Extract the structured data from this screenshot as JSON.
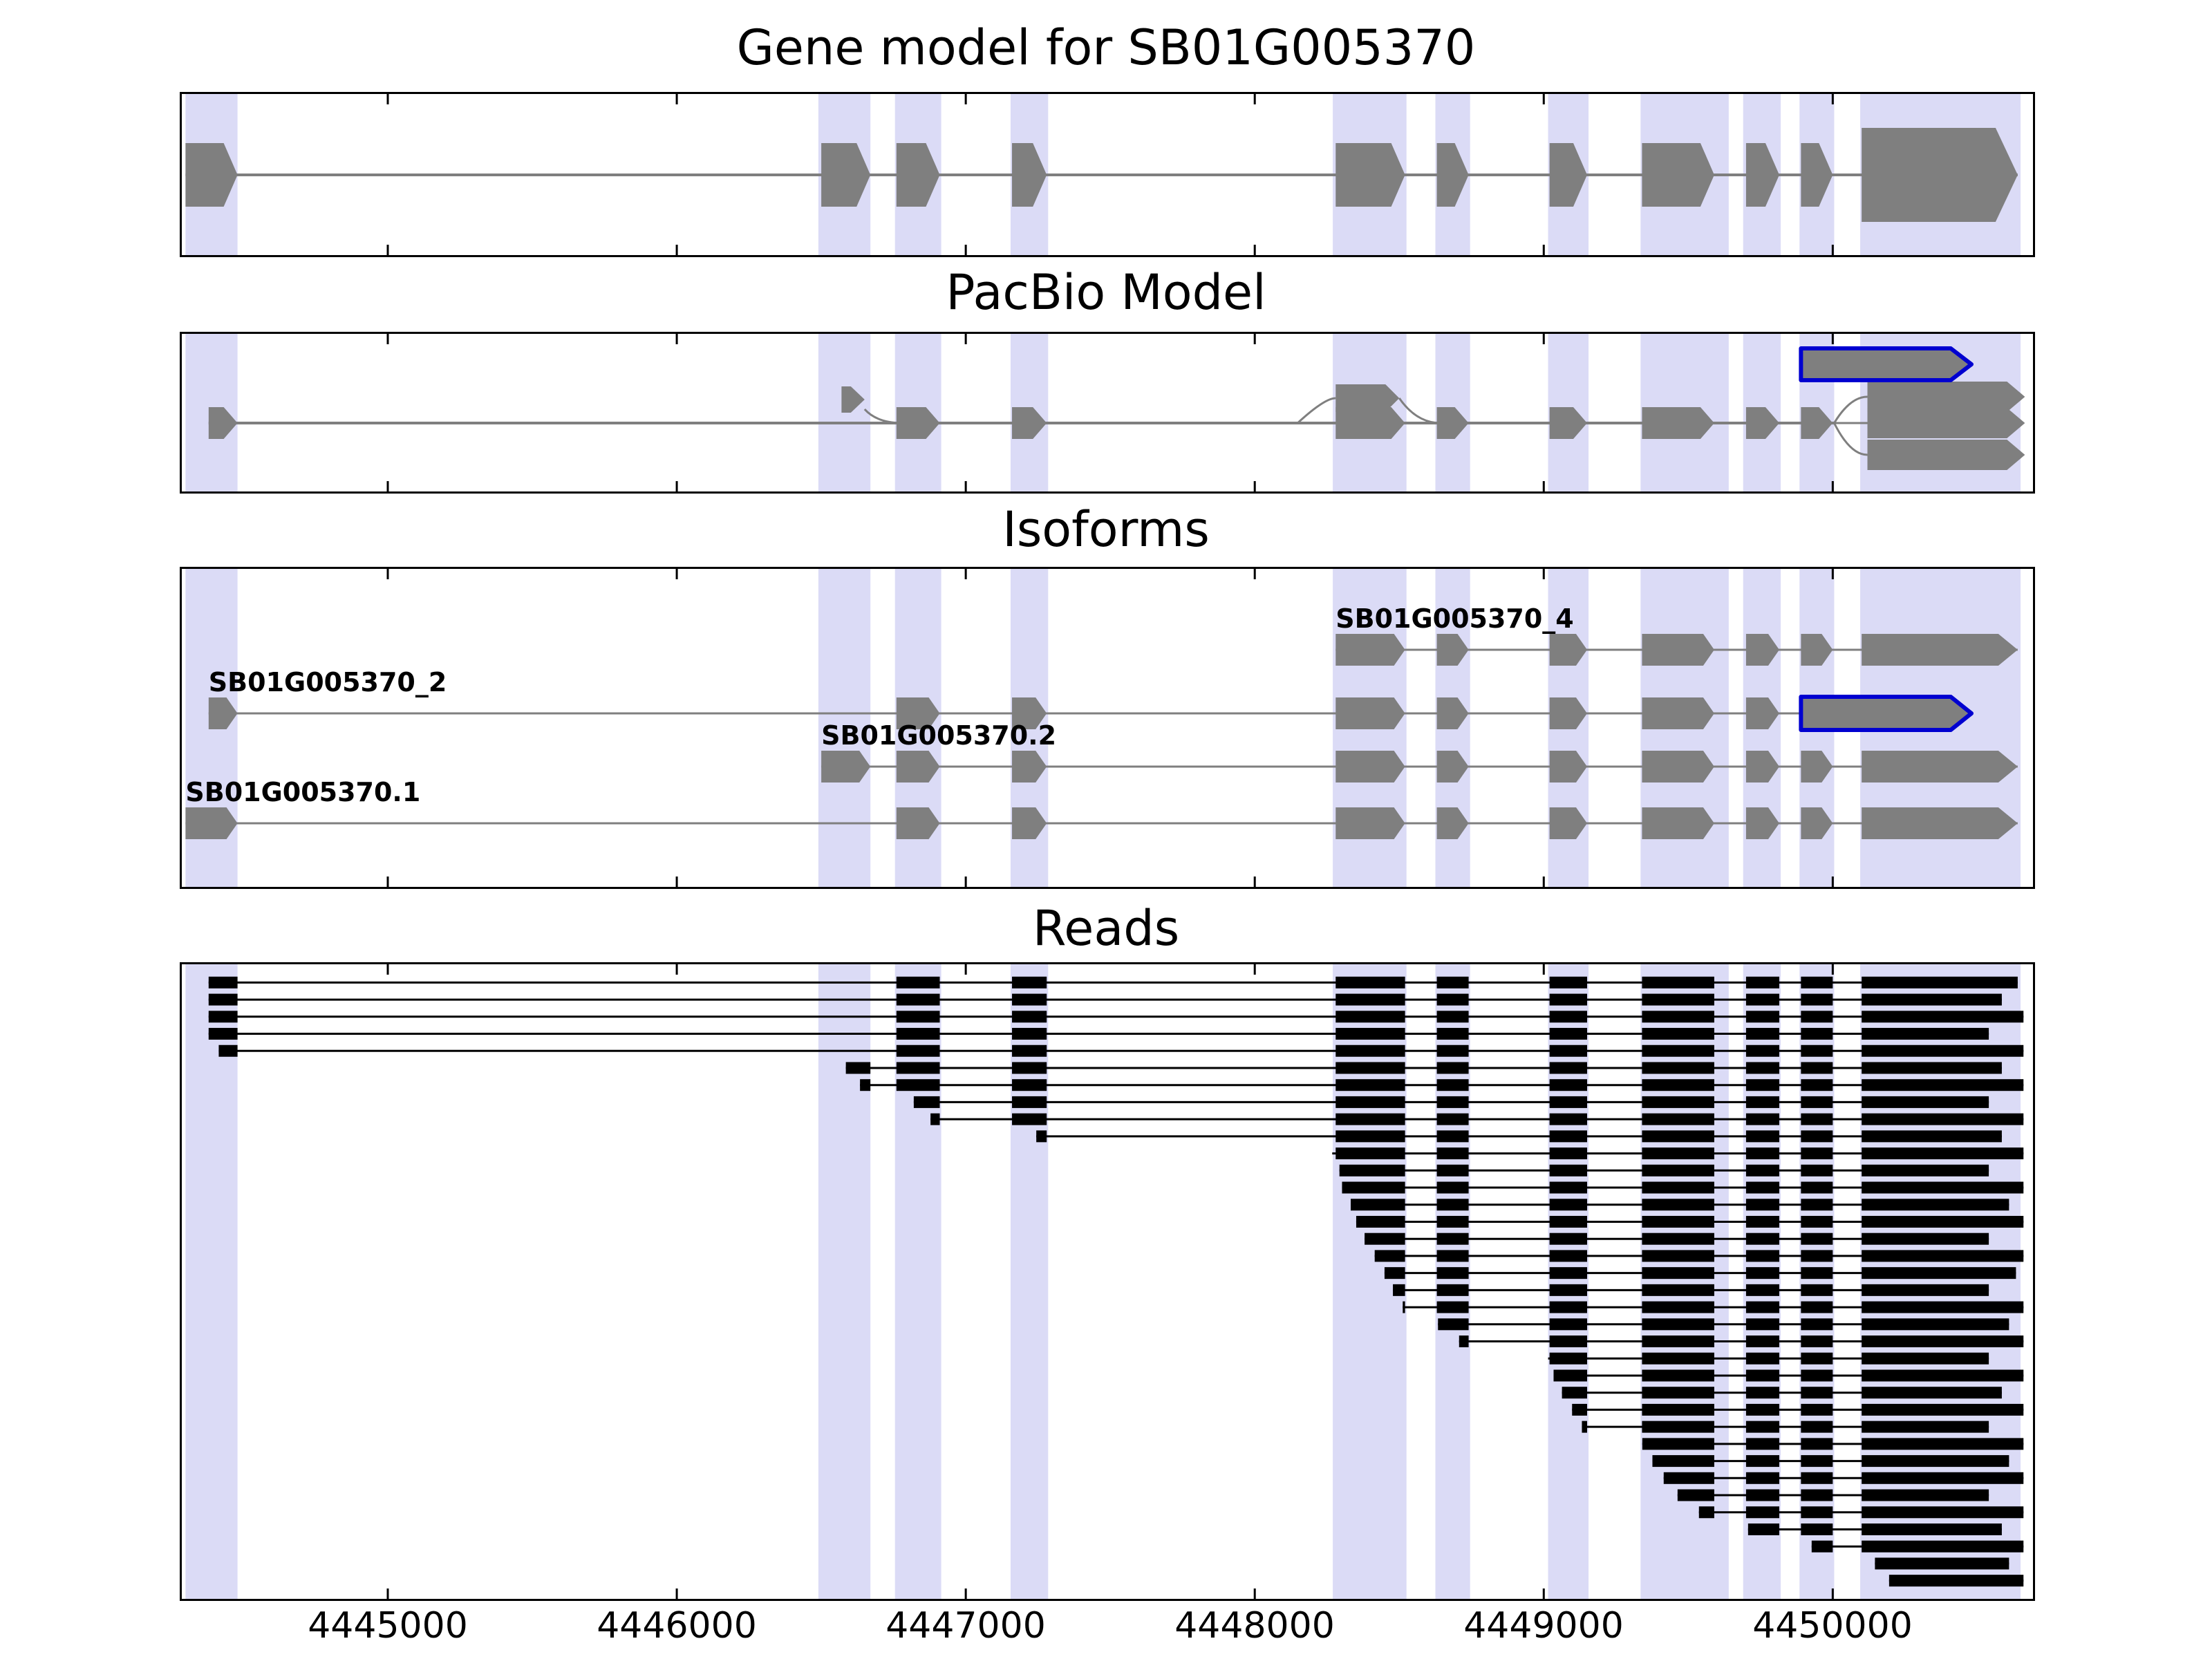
{
  "meta": {
    "colors": {
      "band": "#dbdbf6",
      "feature": "#7f7f7f",
      "read": "#000000",
      "highlight": "#0000d0",
      "axis": "#000000",
      "text": "#000000",
      "background": "#ffffff"
    }
  },
  "panels": [
    {
      "title": "Gene model for SB01G005370"
    },
    {
      "title": "PacBio Model"
    },
    {
      "title": "Isoforms"
    },
    {
      "title": "Reads"
    }
  ],
  "genome": {
    "ticks": [
      "4445000",
      "4446000",
      "4447000",
      "4448000",
      "4449000",
      "4450000"
    ]
  },
  "chart_data": {
    "type": "genomic-tracks",
    "title": "Gene model for SB01G005370",
    "x_range": [
      4444280,
      4450700
    ],
    "x_ticks": [
      4445000,
      4446000,
      4447000,
      4448000,
      4449000,
      4450000
    ],
    "exon_bands": [
      [
        4444300,
        4444480
      ],
      [
        4446490,
        4446670
      ],
      [
        4446755,
        4446915
      ],
      [
        4447155,
        4447285
      ],
      [
        4448270,
        4448525
      ],
      [
        4448625,
        4448745
      ],
      [
        4449015,
        4449155
      ],
      [
        4449335,
        4449640
      ],
      [
        4449690,
        4449820
      ],
      [
        4449885,
        4450005
      ],
      [
        4450095,
        4450650
      ]
    ],
    "gene_model": {
      "exons": [
        [
          4444300,
          4444480
        ],
        [
          4446500,
          4446670
        ],
        [
          4446760,
          4446910
        ],
        [
          4447160,
          4447280
        ],
        [
          4448280,
          4448520
        ],
        [
          4448630,
          4448740
        ],
        [
          4449020,
          4449150
        ],
        [
          4449340,
          4449590
        ],
        [
          4449700,
          4449815
        ],
        [
          4449890,
          4450000
        ],
        [
          4450100,
          4450640
        ]
      ]
    },
    "pacbio": {
      "main_exons": [
        [
          4444380,
          4444480
        ],
        [
          4446760,
          4446910
        ],
        [
          4447160,
          4447280
        ],
        [
          4448280,
          4448520
        ],
        [
          4448630,
          4448740
        ],
        [
          4449020,
          4449150
        ],
        [
          4449340,
          4449590
        ],
        [
          4449700,
          4449815
        ],
        [
          4449890,
          4450000
        ]
      ],
      "alt_start_exon": [
        4446570,
        4446650
      ],
      "alt_exon5": [
        4448280,
        4448500
      ],
      "terminal_exons": [
        [
          4450120,
          4450665
        ],
        [
          4450120,
          4450665
        ],
        [
          4450120,
          4450665
        ]
      ],
      "highlight_exon": [
        4449890,
        4450480
      ]
    },
    "isoforms": [
      {
        "name": "SB01G005370_4",
        "exons": [
          [
            4448280,
            4448520
          ],
          [
            4448630,
            4448740
          ],
          [
            4449020,
            4449150
          ],
          [
            4449340,
            4449590
          ],
          [
            4449700,
            4449815
          ],
          [
            4449890,
            4450000
          ],
          [
            4450100,
            4450640
          ]
        ],
        "highlight": null
      },
      {
        "name": "SB01G005370_2",
        "exons": [
          [
            4444380,
            4444480
          ],
          [
            4446760,
            4446910
          ],
          [
            4447160,
            4447280
          ],
          [
            4448280,
            4448520
          ],
          [
            4448630,
            4448740
          ],
          [
            4449020,
            4449150
          ],
          [
            4449340,
            4449590
          ],
          [
            4449700,
            4449815
          ]
        ],
        "highlight": [
          4449890,
          4450480
        ]
      },
      {
        "name": "SB01G005370.2",
        "exons": [
          [
            4446500,
            4446670
          ],
          [
            4446760,
            4446910
          ],
          [
            4447160,
            4447280
          ],
          [
            4448280,
            4448520
          ],
          [
            4448630,
            4448740
          ],
          [
            4449020,
            4449150
          ],
          [
            4449340,
            4449590
          ],
          [
            4449700,
            4449815
          ],
          [
            4449890,
            4450000
          ],
          [
            4450100,
            4450640
          ]
        ],
        "highlight": null
      },
      {
        "name": "SB01G005370.1",
        "exons": [
          [
            4444300,
            4444480
          ],
          [
            4446760,
            4446910
          ],
          [
            4447160,
            4447280
          ],
          [
            4448280,
            4448520
          ],
          [
            4448630,
            4448740
          ],
          [
            4449020,
            4449150
          ],
          [
            4449340,
            4449590
          ],
          [
            4449700,
            4449815
          ],
          [
            4449890,
            4450000
          ],
          [
            4450100,
            4450640
          ]
        ],
        "highlight": null
      }
    ],
    "read_exon_model": [
      [
        4444300,
        4444480
      ],
      [
        4446500,
        4446670
      ],
      [
        4446760,
        4446910
      ],
      [
        4447160,
        4447280
      ],
      [
        4448280,
        4448520
      ],
      [
        4448630,
        4448740
      ],
      [
        4449020,
        4449150
      ],
      [
        4449340,
        4449590
      ],
      [
        4449700,
        4449815
      ],
      [
        4449890,
        4450000
      ],
      [
        4450100,
        4450665
      ]
    ],
    "reads": [
      [
        4444380,
        4450640
      ],
      [
        4444380,
        4450585
      ],
      [
        4444380,
        4450660
      ],
      [
        4444380,
        4450540
      ],
      [
        4444415,
        4450660
      ],
      [
        4446585,
        4450585
      ],
      [
        4446634,
        4450660
      ],
      [
        4446820,
        4450540
      ],
      [
        4446878,
        4450660
      ],
      [
        4447244,
        4450585
      ],
      [
        4448268,
        4450660
      ],
      [
        4448293,
        4450540
      ],
      [
        4448302,
        4450660
      ],
      [
        4448332,
        4450610
      ],
      [
        4448351,
        4450660
      ],
      [
        4448380,
        4450540
      ],
      [
        4448415,
        4450660
      ],
      [
        4448449,
        4450634
      ],
      [
        4448478,
        4450540
      ],
      [
        4448512,
        4450660
      ],
      [
        4448634,
        4450610
      ],
      [
        4448707,
        4450660
      ],
      [
        4449015,
        4450540
      ],
      [
        4449034,
        4450660
      ],
      [
        4449063,
        4450585
      ],
      [
        4449098,
        4450660
      ],
      [
        4449132,
        4450540
      ],
      [
        4449341,
        4450660
      ],
      [
        4449376,
        4450610
      ],
      [
        4449415,
        4450660
      ],
      [
        4449463,
        4450540
      ],
      [
        4449537,
        4450660
      ],
      [
        4449707,
        4450585
      ],
      [
        4449927,
        4450660
      ],
      [
        4450146,
        4450610
      ],
      [
        4450195,
        4450660
      ]
    ]
  }
}
